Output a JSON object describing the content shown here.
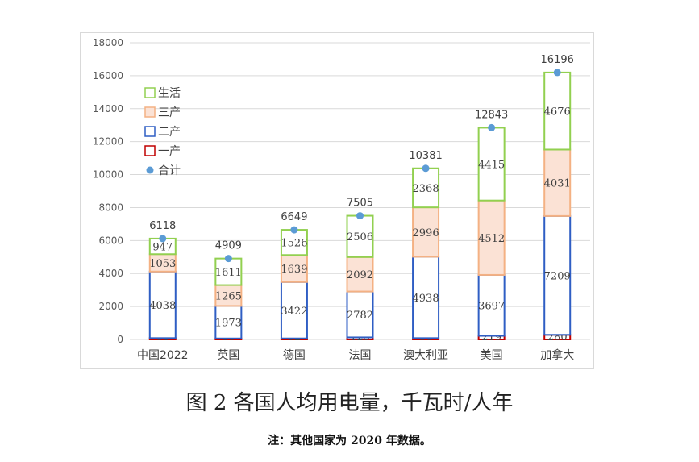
{
  "caption": "图 2 各国人均用电量，千瓦时/人年",
  "note": "注：其他国家为 2020 年数据。",
  "chart_data": {
    "type": "bar",
    "stacked": true,
    "title": "",
    "xlabel": "",
    "ylabel": "",
    "ylim": [
      0,
      18000
    ],
    "yticks": [
      0,
      2000,
      4000,
      6000,
      8000,
      10000,
      12000,
      14000,
      16000,
      18000
    ],
    "grid": true,
    "legend_position": "top-left",
    "categories": [
      "中国2022",
      "英国",
      "德国",
      "法国",
      "澳大利亚",
      "美国",
      "加拿大"
    ],
    "series": [
      {
        "name": "一产",
        "values": [
          81,
          60,
          62,
          125,
          80,
          219,
          280
        ],
        "stroke": "#c00000",
        "fill": "#ffffff"
      },
      {
        "name": "二产",
        "values": [
          4038,
          1973,
          3422,
          2782,
          4938,
          3697,
          7209
        ],
        "stroke": "#2f5ec4",
        "fill": "#ffffff"
      },
      {
        "name": "三产",
        "values": [
          1053,
          1265,
          1639,
          2092,
          2996,
          4512,
          4031
        ],
        "stroke": "#f4b183",
        "fill": "#fbe2d5"
      },
      {
        "name": "生活",
        "values": [
          947,
          1611,
          1526,
          2506,
          2368,
          4415,
          4676
        ],
        "stroke": "#92d050",
        "fill": "#ffffff"
      }
    ],
    "totals": {
      "name": "合计",
      "values": [
        6118,
        4909,
        6649,
        7505,
        10381,
        12843,
        16196
      ],
      "color": "#5b9bd5"
    },
    "legend_order": [
      "生活",
      "三产",
      "二产",
      "一产",
      "合计"
    ]
  }
}
